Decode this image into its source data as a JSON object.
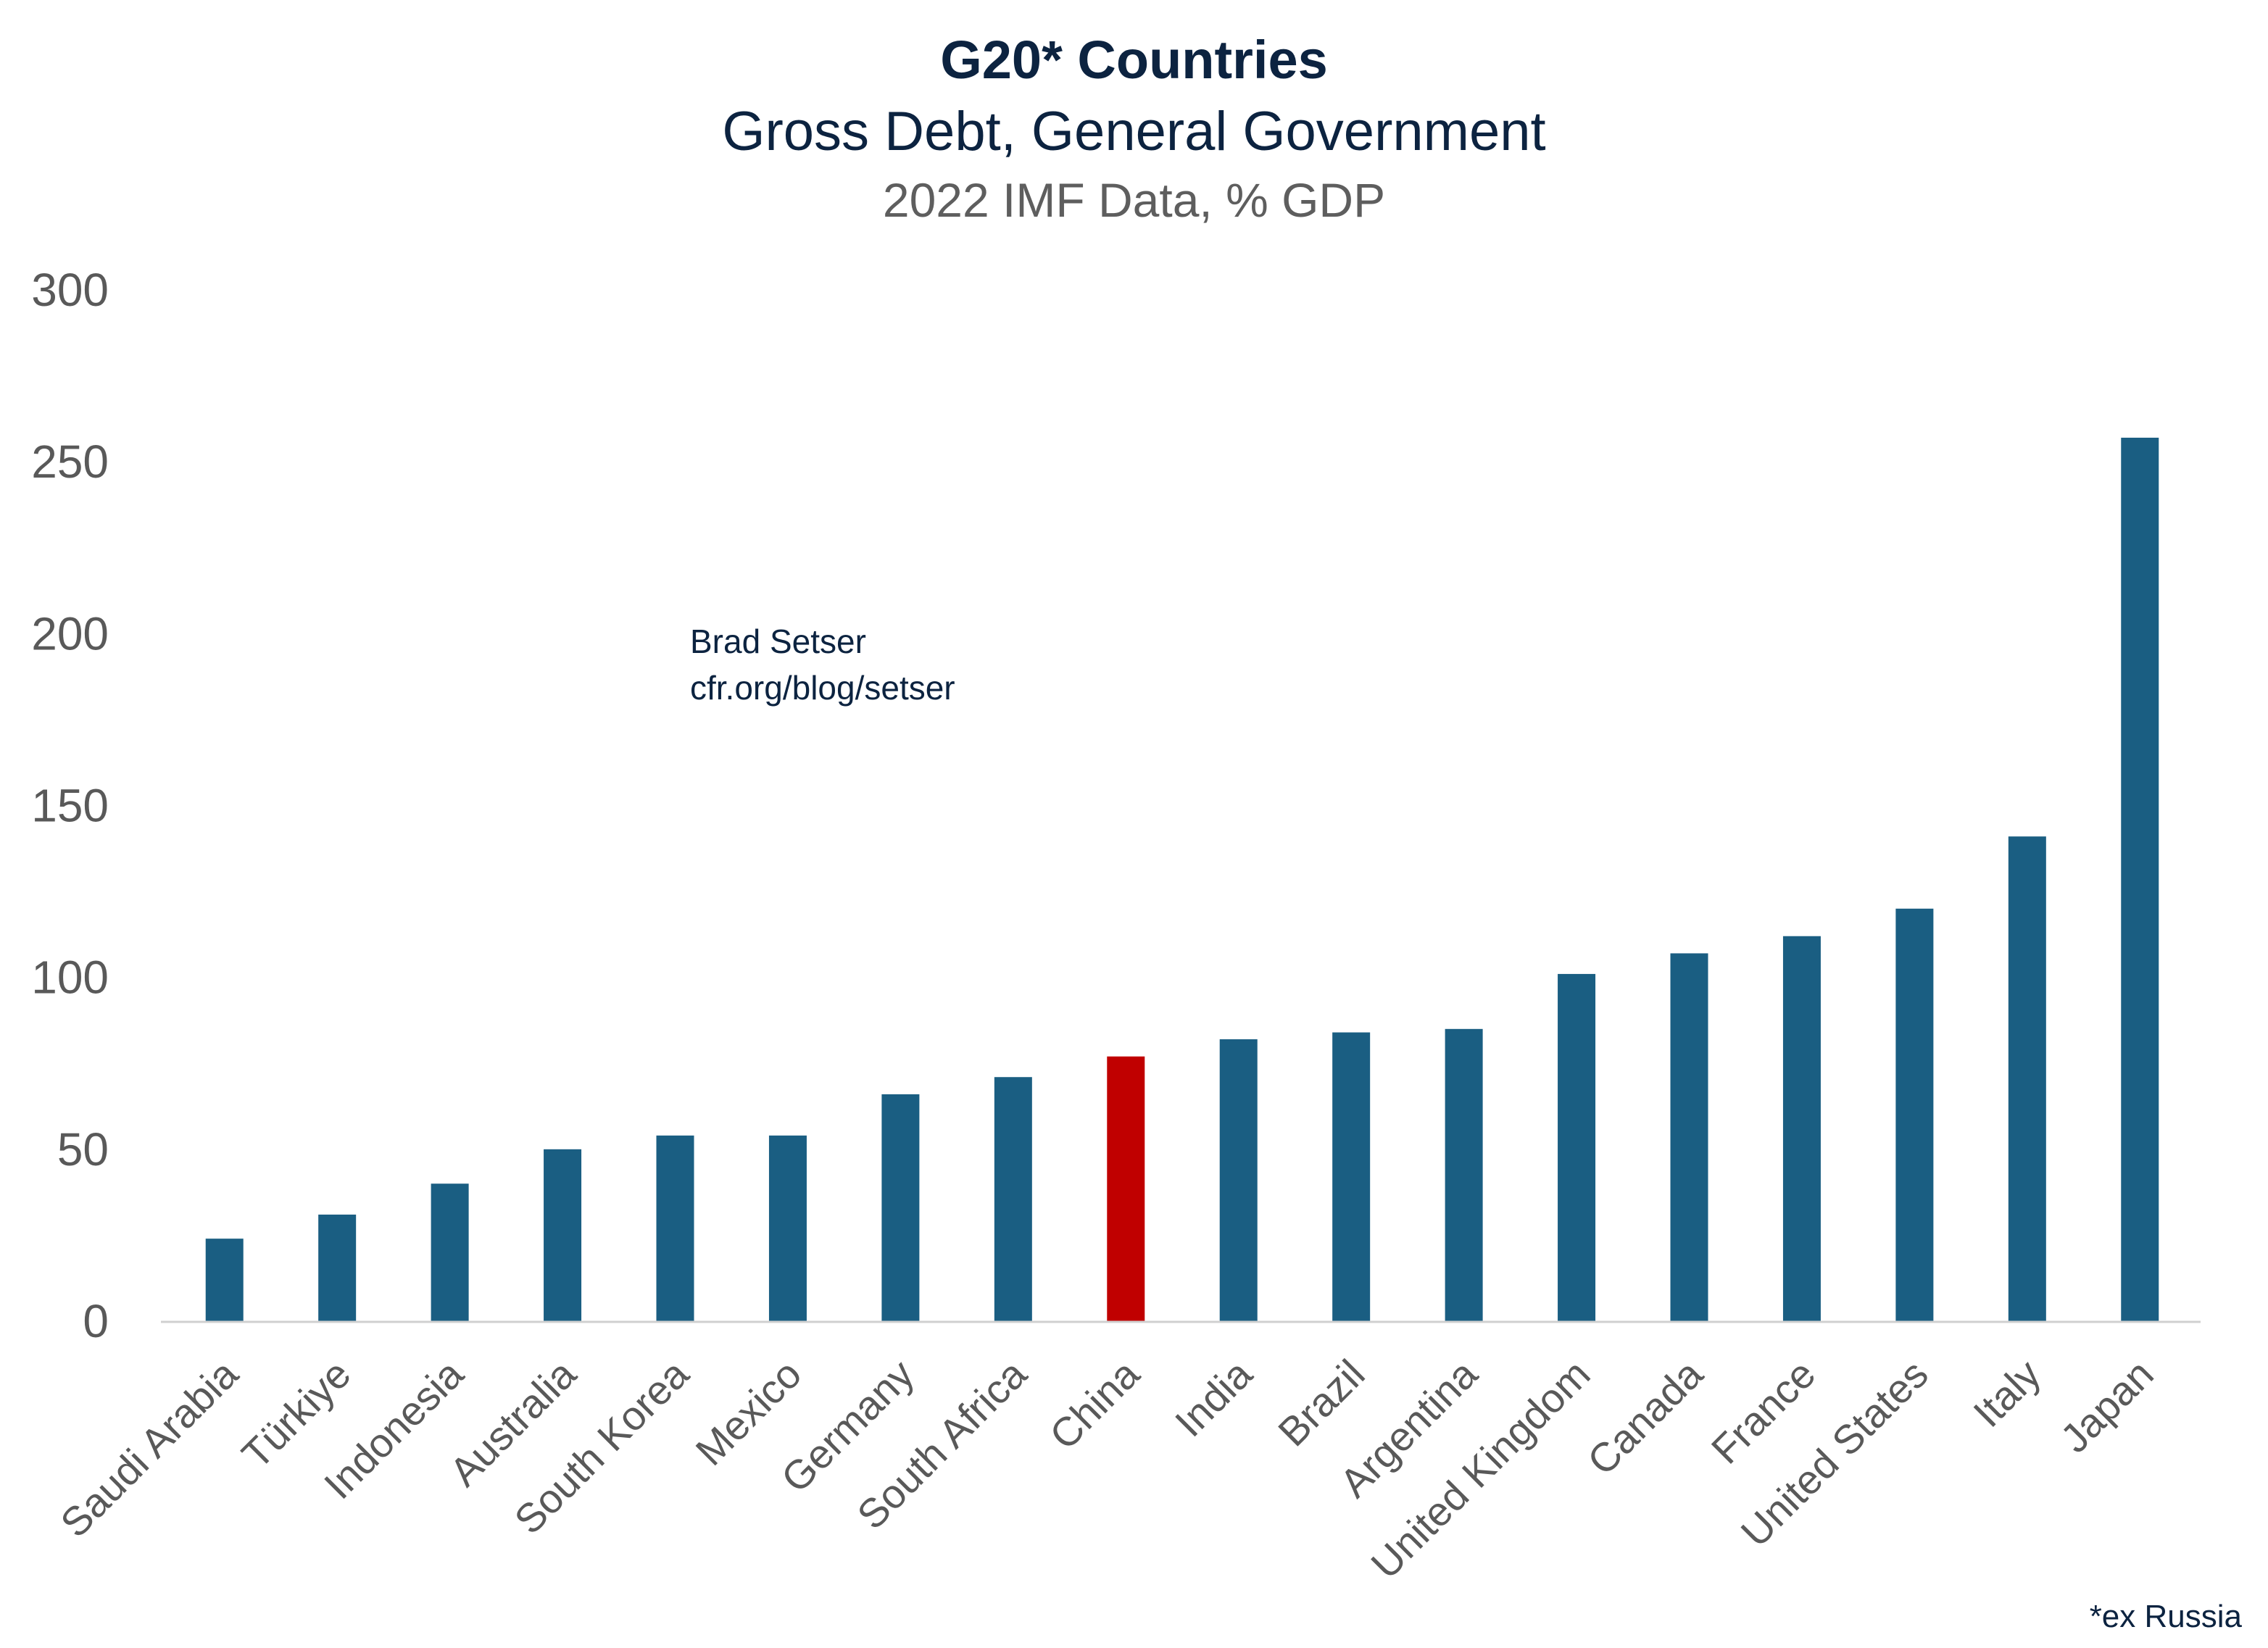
{
  "title": "G20* Countries",
  "subtitle": "Gross Debt, General Government",
  "subtitle2": "2022 IMF Data, % GDP",
  "credit_name": "Brad Setser",
  "credit_url": "cfr.org/blog/setser",
  "footnote": "*ex Russia",
  "colors": {
    "bar": "#1a5e82",
    "highlight": "#c00000",
    "axis": "#d0d0d0",
    "tick_label": "#595959"
  },
  "chart_data": {
    "type": "bar",
    "categories": [
      "Saudi Arabia",
      "Türkiye",
      "Indonesia",
      "Australia",
      "South Korea",
      "Mexico",
      "Germany",
      "South Africa",
      "China",
      "India",
      "Brazil",
      "Argentina",
      "United Kingdom",
      "Canada",
      "France",
      "United States",
      "Italy",
      "Japan"
    ],
    "values": [
      24,
      31,
      40,
      50,
      54,
      54,
      66,
      71,
      77,
      82,
      84,
      85,
      101,
      107,
      112,
      120,
      141,
      257
    ],
    "highlight": "China",
    "ylim": [
      0,
      300
    ],
    "yticks": [
      0,
      50,
      100,
      150,
      200,
      250,
      300
    ],
    "xlabel": "",
    "ylabel": "",
    "grid": false,
    "legend": "none"
  }
}
